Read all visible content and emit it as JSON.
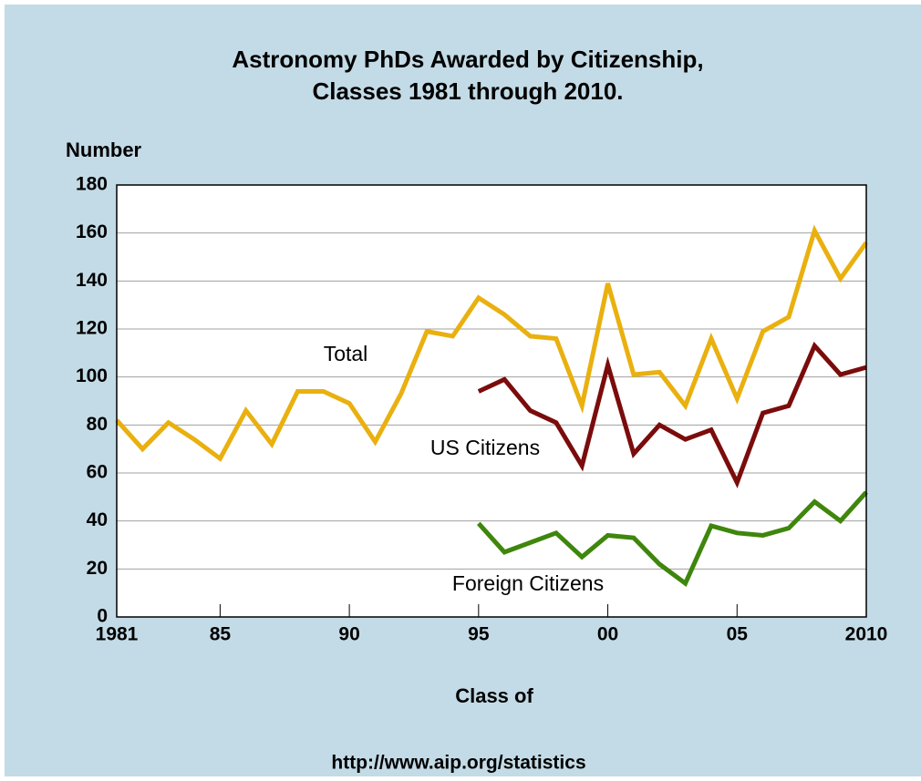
{
  "chart_data": {
    "type": "line",
    "title": [
      "Astronomy PhDs Awarded by Citizenship,",
      "Classes 1981 through 2010."
    ],
    "y_label": "Number",
    "x_label": "Class of",
    "source": "http://www.aip.org/statistics",
    "x": [
      1981,
      1982,
      1983,
      1984,
      1985,
      1986,
      1987,
      1988,
      1989,
      1990,
      1991,
      1992,
      1993,
      1994,
      1995,
      1996,
      1997,
      1998,
      1999,
      2000,
      2001,
      2002,
      2003,
      2004,
      2005,
      2006,
      2007,
      2008,
      2009,
      2010
    ],
    "series": [
      {
        "name": "Total",
        "color": "#e9b00f",
        "values": [
          82,
          70,
          81,
          74,
          66,
          86,
          72,
          94,
          94,
          89,
          73,
          93,
          119,
          117,
          133,
          126,
          117,
          116,
          88,
          139,
          101,
          102,
          88,
          116,
          91,
          119,
          125,
          161,
          141,
          156
        ]
      },
      {
        "name": "US Citizens",
        "color": "#7b0c0c",
        "values": [
          null,
          null,
          null,
          null,
          null,
          null,
          null,
          null,
          null,
          null,
          null,
          null,
          null,
          null,
          94,
          99,
          86,
          81,
          63,
          105,
          68,
          80,
          74,
          78,
          56,
          85,
          88,
          113,
          101,
          104
        ]
      },
      {
        "name": "Foreign Citizens",
        "color": "#3f860c",
        "values": [
          null,
          null,
          null,
          null,
          null,
          null,
          null,
          null,
          null,
          null,
          null,
          null,
          null,
          null,
          39,
          27,
          31,
          35,
          25,
          34,
          33,
          22,
          14,
          38,
          35,
          34,
          37,
          48,
          40,
          52
        ]
      }
    ],
    "xlim": [
      1981,
      2010
    ],
    "xticks": [
      1981,
      {
        "value": 1985,
        "label": "85"
      },
      {
        "value": 1990,
        "label": "90"
      },
      {
        "value": 1995,
        "label": "95"
      },
      {
        "value": 2000,
        "label": "00"
      },
      {
        "value": 2005,
        "label": "05"
      },
      2010
    ],
    "ylim": [
      0,
      180
    ],
    "yticks": [
      0,
      20,
      40,
      60,
      80,
      100,
      120,
      140,
      160,
      180
    ],
    "grid": true
  }
}
